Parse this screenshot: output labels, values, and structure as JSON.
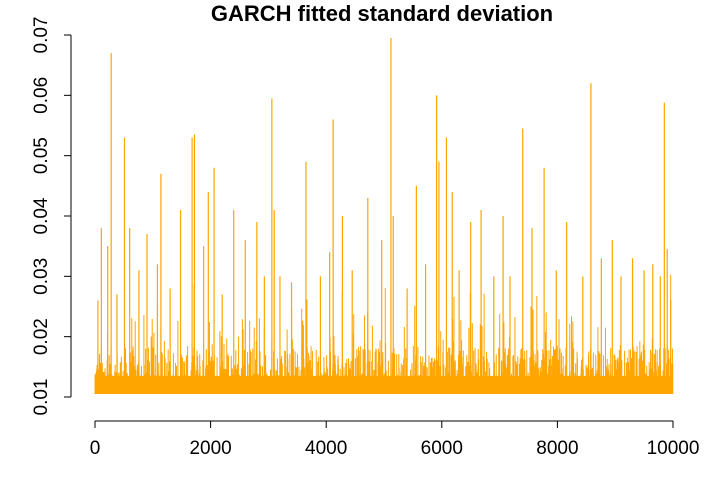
{
  "chart_data": {
    "type": "line",
    "title": "GARCH fitted standard deviation",
    "xlabel": "",
    "ylabel": "",
    "xlim": [
      0,
      10000
    ],
    "ylim": [
      0.01,
      0.07
    ],
    "x_ticks": [
      0,
      2000,
      4000,
      6000,
      8000,
      10000
    ],
    "y_ticks": [
      0.01,
      0.02,
      0.03,
      0.04,
      0.05,
      0.06,
      0.07
    ],
    "x_tick_labels": [
      "0",
      "2000",
      "4000",
      "6000",
      "8000",
      "10000"
    ],
    "y_tick_labels": [
      "0.01",
      "0.02",
      "0.03",
      "0.04",
      "0.05",
      "0.06",
      "0.07"
    ],
    "grid": false,
    "n_points": 10000,
    "baseline": 0.0105,
    "typical_upper": 0.0185,
    "peaks": [
      {
        "x": 50,
        "y": 0.026
      },
      {
        "x": 110,
        "y": 0.038
      },
      {
        "x": 220,
        "y": 0.035
      },
      {
        "x": 280,
        "y": 0.067
      },
      {
        "x": 380,
        "y": 0.027
      },
      {
        "x": 510,
        "y": 0.053
      },
      {
        "x": 600,
        "y": 0.038
      },
      {
        "x": 760,
        "y": 0.031
      },
      {
        "x": 900,
        "y": 0.037
      },
      {
        "x": 1080,
        "y": 0.032
      },
      {
        "x": 1140,
        "y": 0.047
      },
      {
        "x": 1300,
        "y": 0.028
      },
      {
        "x": 1480,
        "y": 0.041
      },
      {
        "x": 1680,
        "y": 0.053
      },
      {
        "x": 1720,
        "y": 0.0535
      },
      {
        "x": 1880,
        "y": 0.035
      },
      {
        "x": 1960,
        "y": 0.044
      },
      {
        "x": 2060,
        "y": 0.048
      },
      {
        "x": 2200,
        "y": 0.027
      },
      {
        "x": 2400,
        "y": 0.041
      },
      {
        "x": 2600,
        "y": 0.036
      },
      {
        "x": 2800,
        "y": 0.039
      },
      {
        "x": 2930,
        "y": 0.03
      },
      {
        "x": 3060,
        "y": 0.0595
      },
      {
        "x": 3100,
        "y": 0.041
      },
      {
        "x": 3200,
        "y": 0.03
      },
      {
        "x": 3400,
        "y": 0.029
      },
      {
        "x": 3650,
        "y": 0.049
      },
      {
        "x": 3900,
        "y": 0.03
      },
      {
        "x": 4060,
        "y": 0.034
      },
      {
        "x": 4120,
        "y": 0.056
      },
      {
        "x": 4280,
        "y": 0.04
      },
      {
        "x": 4450,
        "y": 0.031
      },
      {
        "x": 4720,
        "y": 0.043
      },
      {
        "x": 4960,
        "y": 0.036
      },
      {
        "x": 5120,
        "y": 0.0695
      },
      {
        "x": 5160,
        "y": 0.04
      },
      {
        "x": 5400,
        "y": 0.028
      },
      {
        "x": 5560,
        "y": 0.045
      },
      {
        "x": 5720,
        "y": 0.032
      },
      {
        "x": 5910,
        "y": 0.06
      },
      {
        "x": 5950,
        "y": 0.049
      },
      {
        "x": 6080,
        "y": 0.053
      },
      {
        "x": 6180,
        "y": 0.044
      },
      {
        "x": 6300,
        "y": 0.031
      },
      {
        "x": 6500,
        "y": 0.039
      },
      {
        "x": 6680,
        "y": 0.041
      },
      {
        "x": 6900,
        "y": 0.03
      },
      {
        "x": 7060,
        "y": 0.04
      },
      {
        "x": 7180,
        "y": 0.03
      },
      {
        "x": 7400,
        "y": 0.0545
      },
      {
        "x": 7560,
        "y": 0.038
      },
      {
        "x": 7770,
        "y": 0.048
      },
      {
        "x": 7980,
        "y": 0.031
      },
      {
        "x": 8160,
        "y": 0.039
      },
      {
        "x": 8440,
        "y": 0.03
      },
      {
        "x": 8580,
        "y": 0.062
      },
      {
        "x": 8760,
        "y": 0.033
      },
      {
        "x": 8950,
        "y": 0.036
      },
      {
        "x": 9100,
        "y": 0.03
      },
      {
        "x": 9300,
        "y": 0.033
      },
      {
        "x": 9500,
        "y": 0.031
      },
      {
        "x": 9650,
        "y": 0.032
      },
      {
        "x": 9780,
        "y": 0.03
      },
      {
        "x": 9850,
        "y": 0.0588
      },
      {
        "x": 9900,
        "y": 0.0345
      },
      {
        "x": 9960,
        "y": 0.026
      }
    ],
    "line_color": "#FFA500",
    "axis_color": "#000000"
  }
}
